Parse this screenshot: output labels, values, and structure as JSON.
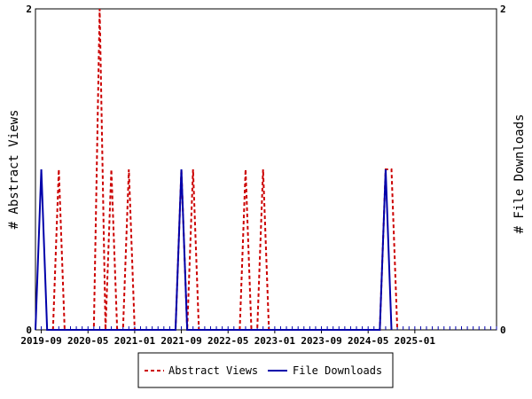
{
  "chart_data": {
    "type": "line",
    "ylabel_left": "# Abstract Views",
    "ylabel_right": "# File Downloads",
    "ylim_left": [
      0,
      2
    ],
    "ylim_right": [
      0,
      2
    ],
    "y_tick_labels_left": [
      "0",
      "2"
    ],
    "y_tick_labels_right": [
      "0",
      "2"
    ],
    "x_range": [
      "2019-08",
      "2026-03"
    ],
    "x_tick_labels": [
      "2019-09",
      "2020-05",
      "2021-01",
      "2021-09",
      "2022-05",
      "2023-01",
      "2023-09",
      "2024-05",
      "2025-01"
    ],
    "x_tick_values": [
      "2019-09",
      "2020-05",
      "2021-01",
      "2021-09",
      "2022-05",
      "2023-01",
      "2023-09",
      "2024-05",
      "2025-01"
    ],
    "grid": false,
    "legend_position": "bottom",
    "series": [
      {
        "name": "Abstract Views",
        "color": "#cc0000",
        "style": "dashed",
        "axis": "left",
        "x": [
          "2019-11",
          "2019-12",
          "2020-01",
          "2020-02",
          "2020-03",
          "2020-04",
          "2020-05",
          "2020-06",
          "2020-07",
          "2020-08",
          "2020-09",
          "2020-10",
          "2020-11",
          "2020-12",
          "2021-01",
          "2021-02",
          "2021-03",
          "2021-04",
          "2021-05",
          "2021-06",
          "2021-07",
          "2021-08",
          "2021-09",
          "2021-10",
          "2021-11",
          "2021-12",
          "2022-01",
          "2022-02",
          "2022-03",
          "2022-04",
          "2022-05",
          "2022-06",
          "2022-07",
          "2022-08",
          "2022-09",
          "2022-10",
          "2022-11",
          "2022-12",
          "2023-01",
          "2023-02",
          "2024-07",
          "2024-08",
          "2024-09",
          "2024-10"
        ],
        "y": [
          0,
          1,
          0,
          0,
          0,
          0,
          0,
          0,
          2,
          0,
          1,
          0,
          0,
          1,
          0,
          0,
          0,
          0,
          0,
          0,
          0,
          0,
          1,
          0,
          1,
          0,
          0,
          0,
          0,
          0,
          0,
          0,
          0,
          1,
          0,
          0,
          1,
          0,
          0,
          0,
          0,
          1,
          1,
          0
        ]
      },
      {
        "name": "File Downloads",
        "color": "#0000aa",
        "style": "solid",
        "axis": "right",
        "x": [
          "2019-08",
          "2019-09",
          "2019-10",
          "2021-08",
          "2021-09",
          "2021-10",
          "2024-07",
          "2024-08",
          "2024-09"
        ],
        "y": [
          0,
          1,
          0,
          0,
          1,
          0,
          0,
          1,
          0
        ]
      }
    ]
  }
}
